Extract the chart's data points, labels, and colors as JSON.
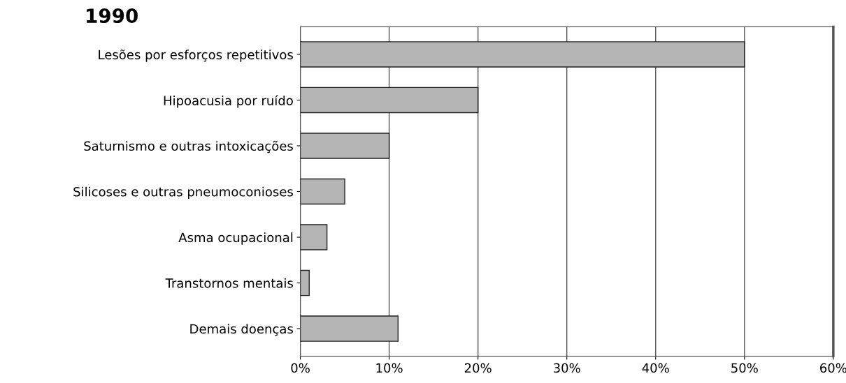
{
  "chart_data": {
    "type": "bar",
    "orientation": "horizontal",
    "title": "1990",
    "categories": [
      "Lesões por esforços repetitivos",
      "Hipoacusia por ruído",
      "Saturnismo e outras intoxicações",
      "Silicoses e outras pneumoconioses",
      "Asma ocupacional",
      "Transtornos mentais",
      "Demais doenças"
    ],
    "values": [
      50,
      20,
      10,
      5,
      3,
      1,
      11
    ],
    "color": "#b4b4b4",
    "xlim": [
      0,
      60
    ],
    "xticks": [
      {
        "value": 0,
        "label": "0%"
      },
      {
        "value": 10,
        "label": "10%"
      },
      {
        "value": 20,
        "label": "20%"
      },
      {
        "value": 30,
        "label": "30%"
      },
      {
        "value": 40,
        "label": "40%"
      },
      {
        "value": 50,
        "label": "50%"
      },
      {
        "value": 60,
        "label": "60%"
      }
    ],
    "grid": "x"
  }
}
